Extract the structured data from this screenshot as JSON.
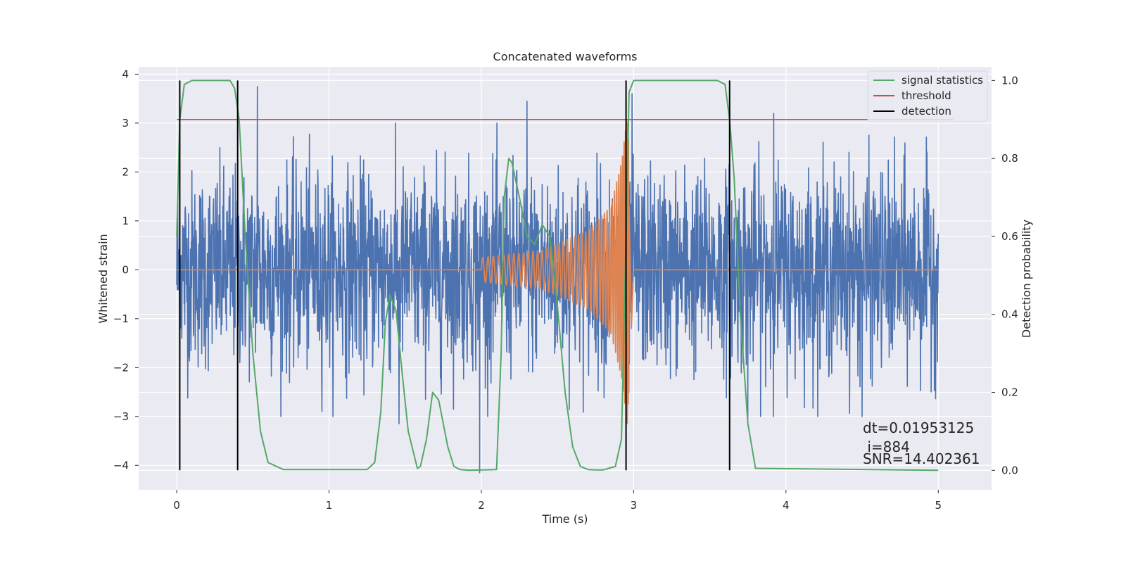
{
  "chart_data": {
    "type": "line",
    "title": "Concatenated waveforms",
    "xlabel": "Time (s)",
    "ylabel_left": "Whitened strain",
    "ylabel_right": "Detection probability",
    "xlim": [
      -0.25,
      5.35
    ],
    "ylim_left": [
      -4.5,
      4.15
    ],
    "ylim_right": [
      -0.05,
      1.035
    ],
    "x_ticks": [
      0,
      1,
      2,
      3,
      4,
      5
    ],
    "x_tick_labels": [
      "0",
      "1",
      "2",
      "3",
      "4",
      "5"
    ],
    "y_ticks_left": [
      -4,
      -3,
      -2,
      -1,
      0,
      1,
      2,
      3,
      4
    ],
    "y_tick_labels_left": [
      "−4",
      "−3",
      "−2",
      "−1",
      "0",
      "1",
      "2",
      "3",
      "4"
    ],
    "y_ticks_right": [
      0.0,
      0.2,
      0.4,
      0.6,
      0.8,
      1.0
    ],
    "y_tick_labels_right": [
      "0.0",
      "0.2",
      "0.4",
      "0.6",
      "0.8",
      "1.0"
    ],
    "grid": true,
    "legend_position": "top-right",
    "legend": [
      {
        "label": "signal statistics",
        "color": "#55a868"
      },
      {
        "label": "threshold",
        "color": "#c44e52"
      },
      {
        "label": "detection",
        "color": "#000000"
      }
    ],
    "colors": {
      "strain": "#4c72b0",
      "injected_waveform": "#dd8452",
      "signal_statistics": "#55a868",
      "threshold": "#c44e52",
      "detection": "#000000",
      "background": "#eaeaf2",
      "grid": "#ffffff"
    },
    "strain_noise": {
      "x_range": [
        0,
        5
      ],
      "samples": 2560,
      "peak_values": [
        {
          "x": 0.53,
          "y": 3.75
        },
        {
          "x": 2.3,
          "y": 3.45
        },
        {
          "x": 2.99,
          "y": 3.6
        },
        {
          "x": 3.92,
          "y": 3.2
        },
        {
          "x": 1.99,
          "y": -4.15
        },
        {
          "x": 4.5,
          "y": -3.0
        },
        {
          "x": 1.46,
          "y": -3.15
        },
        {
          "x": 3.75,
          "y": -3.05
        }
      ]
    },
    "injected_waveform": {
      "x_range": [
        2.0,
        3.0
      ],
      "baseline": 0,
      "envelope": [
        [
          2.0,
          0.25
        ],
        [
          2.4,
          0.4
        ],
        [
          2.7,
          0.8
        ],
        [
          2.85,
          1.3
        ],
        [
          2.92,
          2.2
        ],
        [
          2.96,
          3.2
        ],
        [
          3.0,
          0.0
        ]
      ]
    },
    "signal_statistics": {
      "x": [
        0.0,
        0.02,
        0.05,
        0.1,
        0.35,
        0.38,
        0.41,
        0.45,
        0.5,
        0.55,
        0.6,
        0.7,
        1.25,
        1.3,
        1.34,
        1.37,
        1.4,
        1.44,
        1.48,
        1.52,
        1.58,
        1.6,
        1.64,
        1.68,
        1.72,
        1.78,
        1.82,
        1.86,
        1.92,
        2.1,
        2.13,
        2.15,
        2.18,
        2.2,
        2.25,
        2.3,
        2.35,
        2.38,
        2.4,
        2.45,
        2.5,
        2.55,
        2.6,
        2.65,
        2.7,
        2.75,
        2.8,
        2.88,
        2.92,
        2.95,
        2.97,
        3.0,
        3.55,
        3.6,
        3.63,
        3.66,
        3.7,
        3.75,
        3.8,
        5.0
      ],
      "y": [
        0.6,
        0.9,
        0.99,
        1.0,
        1.0,
        0.98,
        0.9,
        0.6,
        0.3,
        0.1,
        0.02,
        0.002,
        0.002,
        0.02,
        0.15,
        0.38,
        0.45,
        0.41,
        0.25,
        0.1,
        0.005,
        0.01,
        0.08,
        0.2,
        0.18,
        0.06,
        0.01,
        0.002,
        0.0,
        0.002,
        0.3,
        0.7,
        0.8,
        0.79,
        0.7,
        0.6,
        0.58,
        0.61,
        0.63,
        0.6,
        0.42,
        0.2,
        0.06,
        0.01,
        0.002,
        0.001,
        0.001,
        0.01,
        0.08,
        0.6,
        0.97,
        1.0,
        1.0,
        0.99,
        0.9,
        0.75,
        0.4,
        0.12,
        0.005,
        0.0
      ]
    },
    "threshold": {
      "x": [
        0,
        5.1
      ],
      "y": [
        0.9,
        0.9
      ]
    },
    "detections": [
      0.02,
      0.4,
      2.95,
      3.63
    ],
    "annotation_lines": [
      "dt=0.01953125",
      " i=884",
      "SNR=14.402361"
    ]
  }
}
